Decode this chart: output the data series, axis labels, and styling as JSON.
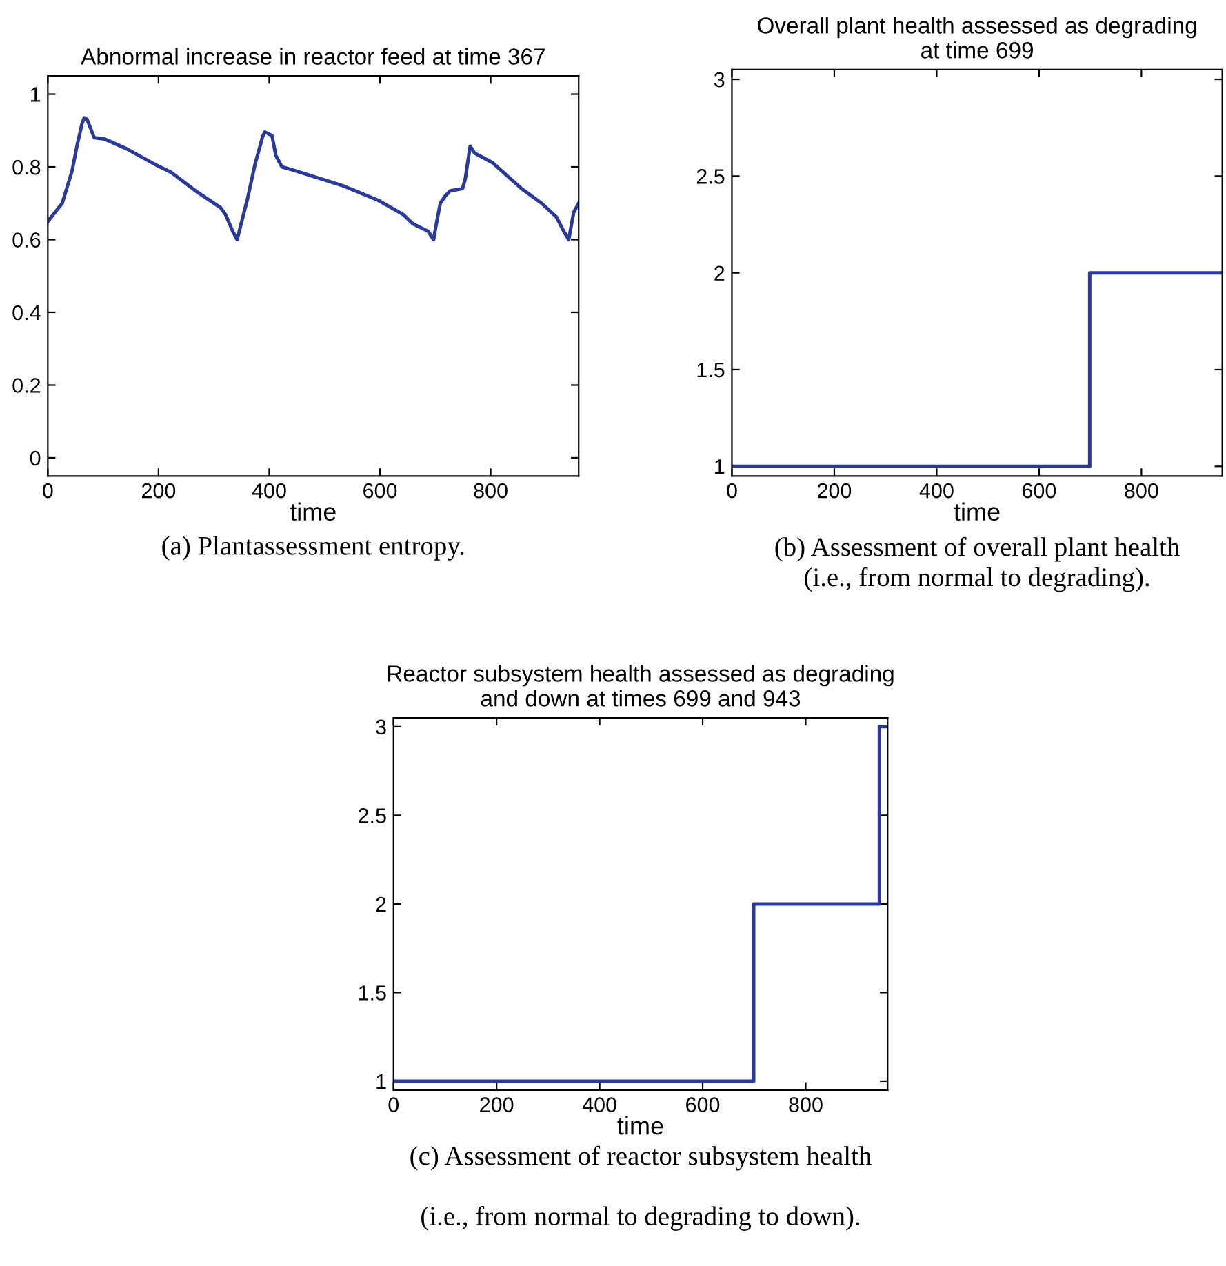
{
  "chart_data": [
    {
      "type": "line",
      "title": "Abnormal increase in reactor feed at time 367",
      "xlabel": "time",
      "annotations": [
        "(a) Plantassessment entropy."
      ],
      "series": [
        {
          "color": "#2b3a98",
          "x": [
            0,
            26,
            44,
            53,
            62,
            66,
            71,
            84,
            102,
            142,
            196,
            222,
            267,
            312,
            321,
            334,
            342,
            347,
            361,
            374,
            388,
            392,
            405,
            412,
            423,
            446,
            535,
            597,
            642,
            660,
            687,
            697,
            701,
            709,
            718,
            727,
            749,
            754,
            763,
            771,
            803,
            856,
            892,
            919,
            932,
            941,
            950,
            959
          ],
          "values": [
            0.65,
            0.7,
            0.79,
            0.86,
            0.92,
            0.935,
            0.93,
            0.88,
            0.877,
            0.85,
            0.805,
            0.786,
            0.734,
            0.688,
            0.669,
            0.623,
            0.6,
            0.63,
            0.714,
            0.805,
            0.883,
            0.896,
            0.886,
            0.831,
            0.8,
            0.79,
            0.747,
            0.708,
            0.669,
            0.643,
            0.623,
            0.6,
            0.636,
            0.7,
            0.72,
            0.734,
            0.74,
            0.766,
            0.857,
            0.838,
            0.812,
            0.74,
            0.7,
            0.662,
            0.623,
            0.6,
            0.675,
            0.7
          ]
        }
      ],
      "xlim": [
        0,
        959
      ],
      "ylim": [
        -0.05,
        1.05
      ],
      "xticks": [
        0,
        200,
        400,
        600,
        800
      ],
      "yticks": [
        0,
        0.2,
        0.4,
        0.6,
        0.8,
        1
      ],
      "grid": false,
      "legend": false
    },
    {
      "type": "step",
      "title": "Overall plant health assessed as degrading\nat time 699",
      "xlabel": "time",
      "annotations": [
        "(b) Assessment of overall plant health\n(i.e., from normal to degrading)."
      ],
      "series": [
        {
          "color": "#2b3a98",
          "x": [
            0,
            699,
            958
          ],
          "values": [
            1,
            2,
            2
          ]
        }
      ],
      "xlim": [
        0,
        958
      ],
      "ylim": [
        0.95,
        3.05
      ],
      "xticks": [
        0,
        200,
        400,
        600,
        800
      ],
      "yticks": [
        1,
        1.5,
        2,
        2.5,
        3
      ],
      "grid": false,
      "legend": false
    },
    {
      "type": "step",
      "title": "Reactor subsystem health assessed as degrading\nand down at times 699 and 943",
      "xlabel": "time",
      "annotations": [
        "(c) Assessment of reactor subsystem health\n\n(i.e., from normal to degrading to down)."
      ],
      "series": [
        {
          "color": "#2b3a98",
          "x": [
            0,
            699,
            943,
            959
          ],
          "values": [
            1,
            2,
            3,
            3
          ]
        }
      ],
      "xlim": [
        0,
        959
      ],
      "ylim": [
        0.95,
        3.05
      ],
      "xticks": [
        0,
        200,
        400,
        600,
        800
      ],
      "yticks": [
        1,
        1.5,
        2,
        2.5,
        3
      ],
      "grid": false,
      "legend": false
    }
  ]
}
